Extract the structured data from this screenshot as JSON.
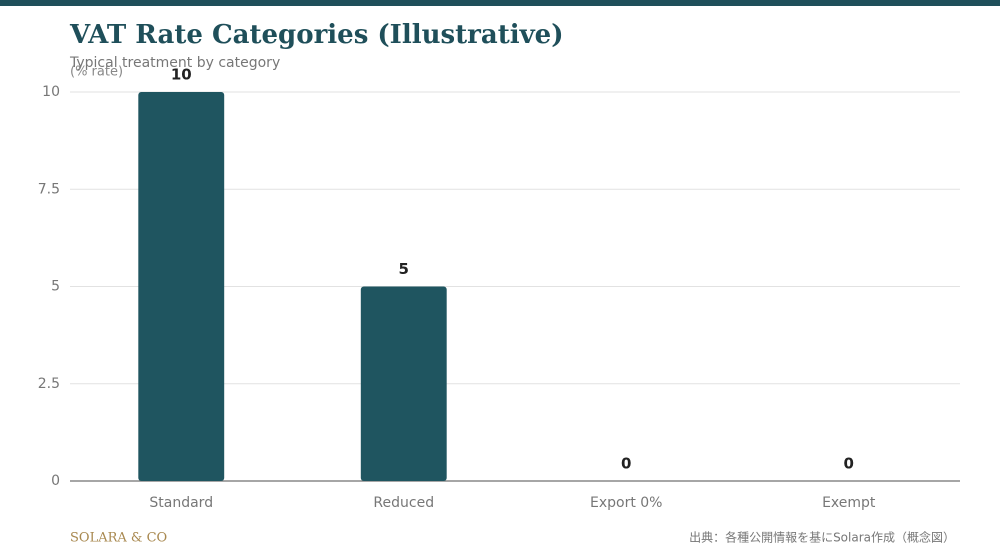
{
  "chart_data": {
    "type": "bar",
    "title": "VAT Rate Categories (Illustrative)",
    "subtitle": "Typical treatment by category",
    "y_label": "(% rate)",
    "categories": [
      "Standard",
      "Reduced",
      "Export 0%",
      "Exempt"
    ],
    "values": [
      10,
      5,
      0,
      0
    ],
    "color": "#1f5560",
    "ylim": [
      0,
      10
    ],
    "yticks": [
      0,
      2.5,
      5,
      7.5,
      10
    ],
    "grid": true
  },
  "footer": {
    "brand": "SOLARA & CO",
    "source": "出典：各種公開情報を基にSolara作成（概念図）"
  }
}
